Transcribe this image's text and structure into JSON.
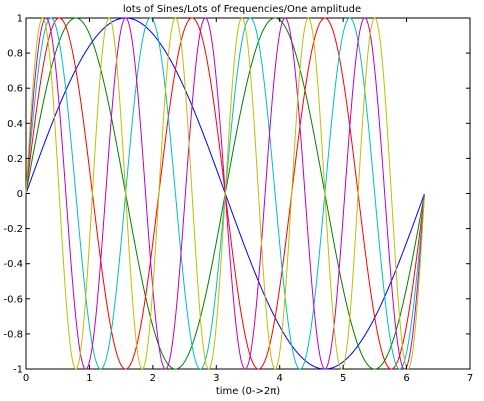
{
  "chart_data": {
    "type": "line",
    "title": "lots of Sines/Lots of Frequencies/One amplitude",
    "xlabel": "time (0->2π)",
    "ylabel": "",
    "xlim": [
      0,
      7
    ],
    "ylim": [
      -1,
      1
    ],
    "x_ticks": [
      0,
      1,
      2,
      3,
      4,
      5,
      6,
      7
    ],
    "x_tick_labels": [
      "0",
      "1",
      "2",
      "3",
      "4",
      "5",
      "6",
      "7"
    ],
    "y_ticks": [
      -1,
      -0.8,
      -0.6,
      -0.4,
      -0.2,
      0,
      0.2,
      0.4,
      0.6,
      0.8,
      1
    ],
    "y_tick_labels": [
      "-1",
      "-0.8",
      "-0.6",
      "-0.4",
      "-0.2",
      "0",
      "0.2",
      "0.4",
      "0.6",
      "0.8",
      "1"
    ],
    "grid": false,
    "legend": "none",
    "x_range": [
      0,
      6.28
    ],
    "series": [
      {
        "function": "sin",
        "frequency": 1,
        "color": "#0000ff"
      },
      {
        "function": "sin",
        "frequency": 2,
        "color": "#008000"
      },
      {
        "function": "sin",
        "frequency": 3,
        "color": "#ff0000"
      },
      {
        "function": "sin",
        "frequency": 4,
        "color": "#00bfbf"
      },
      {
        "function": "sin",
        "frequency": 5,
        "color": "#bf00bf"
      },
      {
        "function": "sin",
        "frequency": 6,
        "color": "#bfbf00"
      }
    ]
  }
}
